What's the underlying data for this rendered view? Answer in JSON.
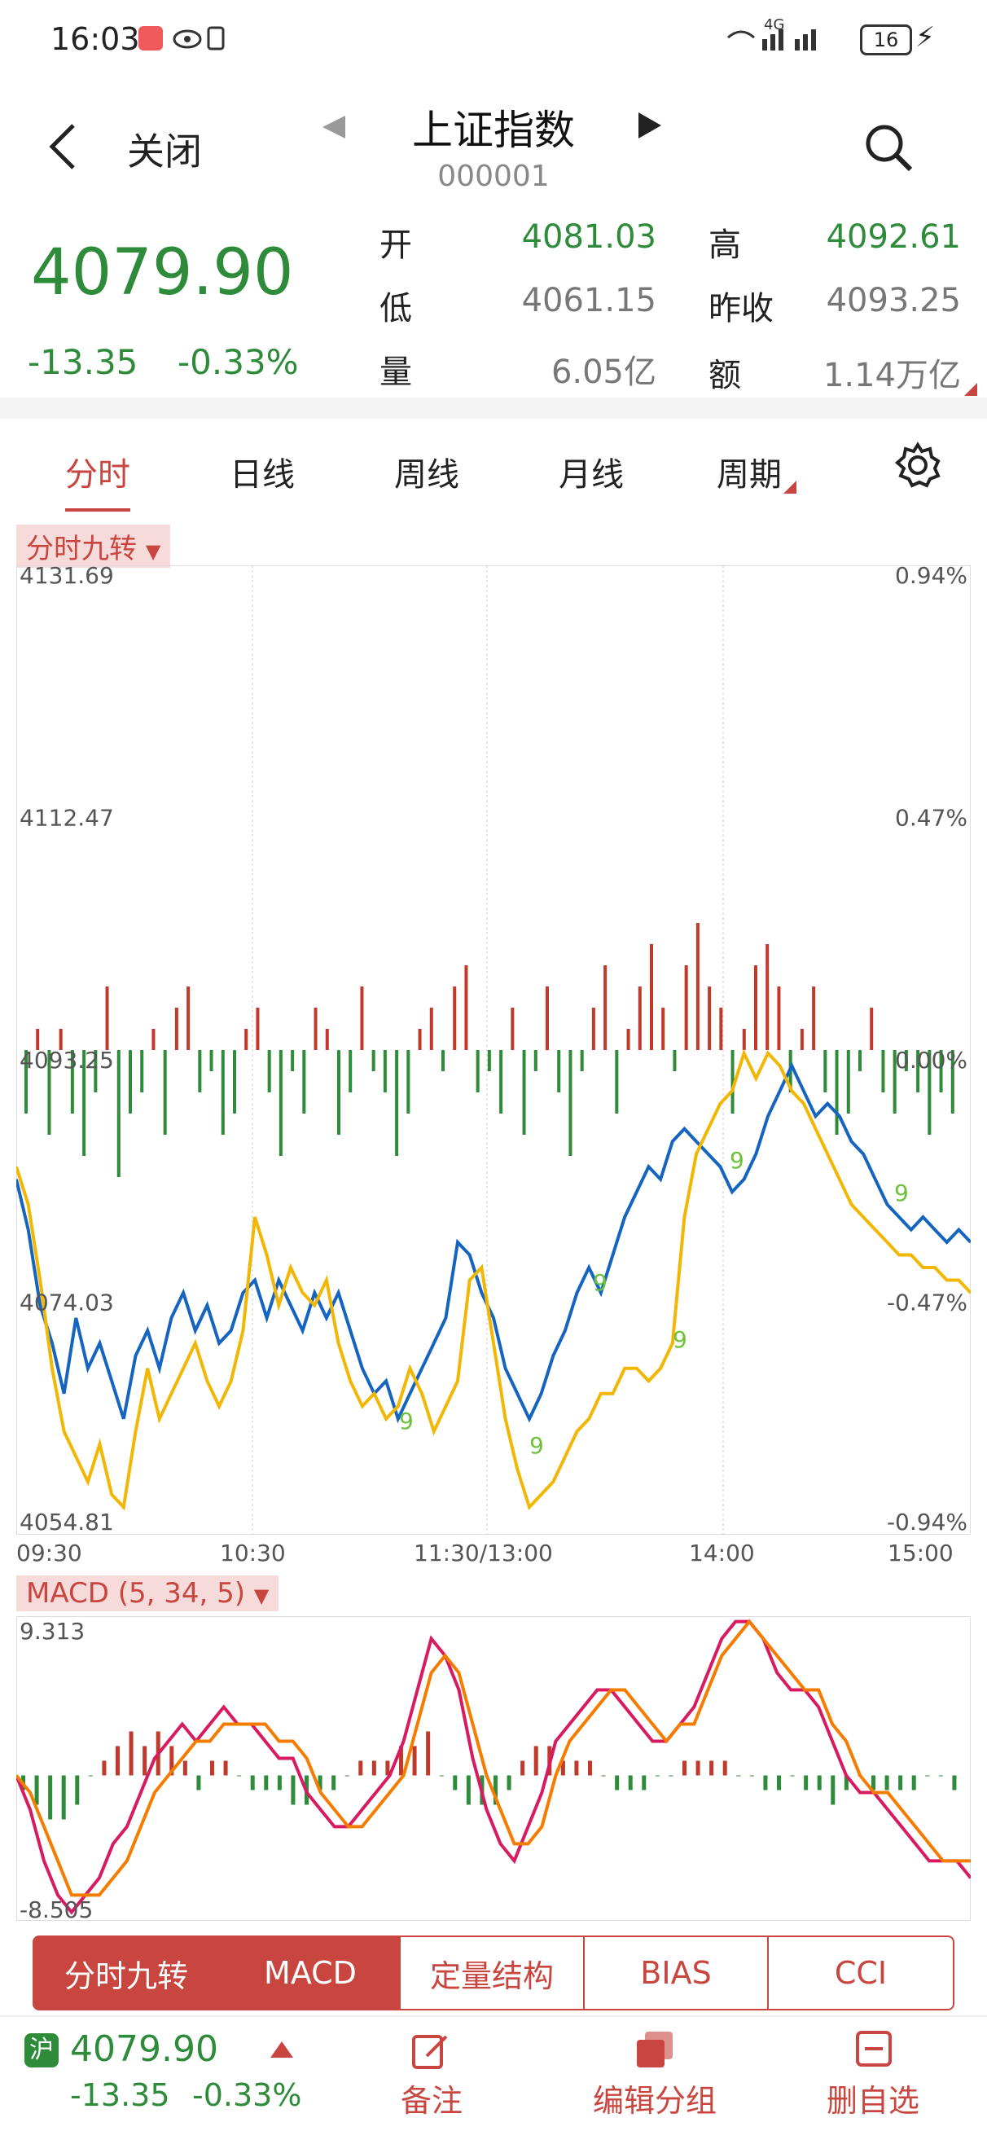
{
  "status_bar": {
    "time": "16:03",
    "network": "4G",
    "battery": "16"
  },
  "nav": {
    "close_label": "关闭",
    "title": "上证指数",
    "code": "000001"
  },
  "quote": {
    "price": "4079.90",
    "change": "-13.35",
    "change_pct": "-0.33%",
    "open_label": "开",
    "open": "4081.03",
    "high_label": "高",
    "high": "4092.61",
    "low_label": "低",
    "low": "4061.15",
    "prev_close_label": "昨收",
    "prev_close": "4093.25",
    "volume_label": "量",
    "volume": "6.05亿",
    "amount_label": "额",
    "amount": "1.14万亿"
  },
  "tabs": [
    "分时",
    "日线",
    "周线",
    "月线",
    "周期"
  ],
  "main_chart_tag": "分时九转",
  "macd_tag": "MACD (5, 34, 5)",
  "chart_data": [
    {
      "type": "line",
      "title": "分时",
      "y_left_ticks": [
        "4131.69",
        "4112.47",
        "4093.25",
        "4074.03",
        "4054.81"
      ],
      "y_right_ticks": [
        "0.94%",
        "0.47%",
        "0.00%",
        "-0.47%",
        "-0.94%"
      ],
      "x_ticks": [
        "09:30",
        "10:30",
        "11:30/13:00",
        "14:00",
        "15:00"
      ],
      "ylim": [
        4054.81,
        4131.69
      ],
      "series": [
        {
          "name": "price",
          "color": "#1565c0",
          "values": [
            4083,
            4079,
            4073,
            4070,
            4066,
            4072,
            4068,
            4070,
            4067,
            4064,
            4069,
            4071,
            4068,
            4072,
            4074,
            4071,
            4073,
            4070,
            4071,
            4074,
            4075,
            4072,
            4075,
            4073,
            4071,
            4074,
            4072,
            4074,
            4071,
            4068,
            4066,
            4067,
            4064,
            4066,
            4068,
            4070,
            4072,
            4078,
            4077,
            4074,
            4072,
            4068,
            4066,
            4064,
            4066,
            4069,
            4071,
            4074,
            4076,
            4074,
            4077,
            4080,
            4082,
            4084,
            4083,
            4086,
            4087,
            4086,
            4085,
            4084,
            4082,
            4083,
            4085,
            4088,
            4090,
            4092,
            4090,
            4088,
            4089,
            4088,
            4086,
            4085,
            4083,
            4081,
            4080,
            4079,
            4080,
            4079,
            4078,
            4079,
            4078
          ]
        },
        {
          "name": "avg",
          "color": "#f2b705",
          "values": [
            4084,
            4081,
            4075,
            4068,
            4063,
            4061,
            4059,
            4062,
            4058,
            4057,
            4063,
            4068,
            4064,
            4066,
            4068,
            4070,
            4067,
            4065,
            4067,
            4071,
            4080,
            4077,
            4073,
            4076,
            4074,
            4073,
            4075,
            4070,
            4067,
            4065,
            4066,
            4064,
            4065,
            4068,
            4066,
            4063,
            4065,
            4067,
            4075,
            4076,
            4070,
            4064,
            4060,
            4057,
            4058,
            4059,
            4061,
            4063,
            4064,
            4066,
            4066,
            4068,
            4068,
            4067,
            4068,
            4070,
            4080,
            4085,
            4087,
            4089,
            4090,
            4093,
            4091,
            4093,
            4092,
            4090,
            4089,
            4087,
            4085,
            4083,
            4081,
            4080,
            4079,
            4078,
            4077,
            4077,
            4076,
            4076,
            4075,
            4075,
            4074
          ]
        }
      ],
      "volume_bars": [
        -3,
        1,
        -4,
        1,
        -3,
        -5,
        -2,
        3,
        -6,
        -3,
        -2,
        1,
        -4,
        2,
        3,
        -2,
        -1,
        -4,
        -3,
        1,
        2,
        -2,
        -5,
        -1,
        -3,
        2,
        1,
        -4,
        -2,
        3,
        -1,
        -2,
        -5,
        -3,
        1,
        2,
        -1,
        3,
        4,
        -2,
        -1,
        -3,
        2,
        -4,
        -1,
        3,
        -2,
        -5,
        -1,
        2,
        4,
        -3,
        1,
        3,
        5,
        2,
        -1,
        4,
        6,
        3,
        2,
        -3,
        1,
        4,
        5,
        3,
        -2,
        1,
        3,
        -2,
        -4,
        -3,
        -1,
        2,
        -2,
        -3,
        -1,
        -2,
        -4,
        -2,
        -3
      ],
      "annotations": [
        "9",
        "9",
        "9",
        "9",
        "9",
        "9"
      ]
    },
    {
      "type": "line",
      "title": "MACD (5, 34, 5)",
      "y_ticks": [
        "9.313",
        "-8.505"
      ],
      "ylim": [
        -8.505,
        9.313
      ],
      "series": [
        {
          "name": "DIF",
          "color": "#d81b60",
          "values": [
            0,
            -2,
            -5,
            -7,
            -8,
            -7,
            -6,
            -4,
            -3,
            -1,
            1,
            2,
            3,
            2,
            3,
            4,
            3,
            3,
            2,
            1,
            1,
            -1,
            -2,
            -3,
            -3,
            -2,
            -1,
            0,
            2,
            5,
            8,
            7,
            5,
            1,
            -2,
            -4,
            -5,
            -3,
            -1,
            2,
            3,
            4,
            5,
            5,
            4,
            3,
            2,
            2,
            3,
            4,
            6,
            8,
            9,
            9,
            8,
            6,
            5,
            5,
            4,
            2,
            0,
            -1,
            -1,
            -2,
            -3,
            -4,
            -5,
            -5,
            -5,
            -6
          ]
        },
        {
          "name": "DEA",
          "color": "#f57c00",
          "values": [
            0,
            -1,
            -3,
            -5,
            -7,
            -7,
            -7,
            -6,
            -5,
            -3,
            -1,
            0,
            1,
            2,
            2,
            3,
            3,
            3,
            3,
            2,
            2,
            1,
            -1,
            -2,
            -3,
            -3,
            -2,
            -1,
            0,
            3,
            6,
            7,
            6,
            3,
            0,
            -2,
            -4,
            -4,
            -3,
            0,
            2,
            3,
            4,
            5,
            5,
            4,
            3,
            2,
            3,
            3,
            5,
            7,
            8,
            9,
            8,
            7,
            6,
            5,
            5,
            3,
            2,
            0,
            -1,
            -1,
            -2,
            -3,
            -4,
            -5,
            -5,
            -5
          ]
        }
      ],
      "histogram": [
        -1,
        -2,
        -3,
        -3,
        -2,
        0,
        1,
        2,
        3,
        2,
        3,
        2,
        1,
        -1,
        1,
        1,
        0,
        -1,
        -1,
        -1,
        -2,
        -2,
        -1,
        -1,
        0,
        1,
        1,
        1,
        2,
        2,
        3,
        0,
        -1,
        -2,
        -2,
        -2,
        -1,
        1,
        2,
        2,
        1,
        1,
        1,
        0,
        -1,
        -1,
        -1,
        0,
        0,
        1,
        1,
        1,
        1,
        0,
        0,
        -1,
        -1,
        0,
        -1,
        -1,
        -2,
        -1,
        0,
        -1,
        -1,
        -1,
        -1,
        0,
        0,
        -1
      ]
    }
  ],
  "indicator_tabs": [
    "分时九转",
    "MACD",
    "定量结构",
    "BIAS",
    "CCI"
  ],
  "footer": {
    "market_tag": "沪",
    "price": "4079.90",
    "change": "-13.35",
    "change_pct": "-0.33%",
    "note_label": "备注",
    "edit_group_label": "编辑分组",
    "remove_label": "删自选"
  }
}
